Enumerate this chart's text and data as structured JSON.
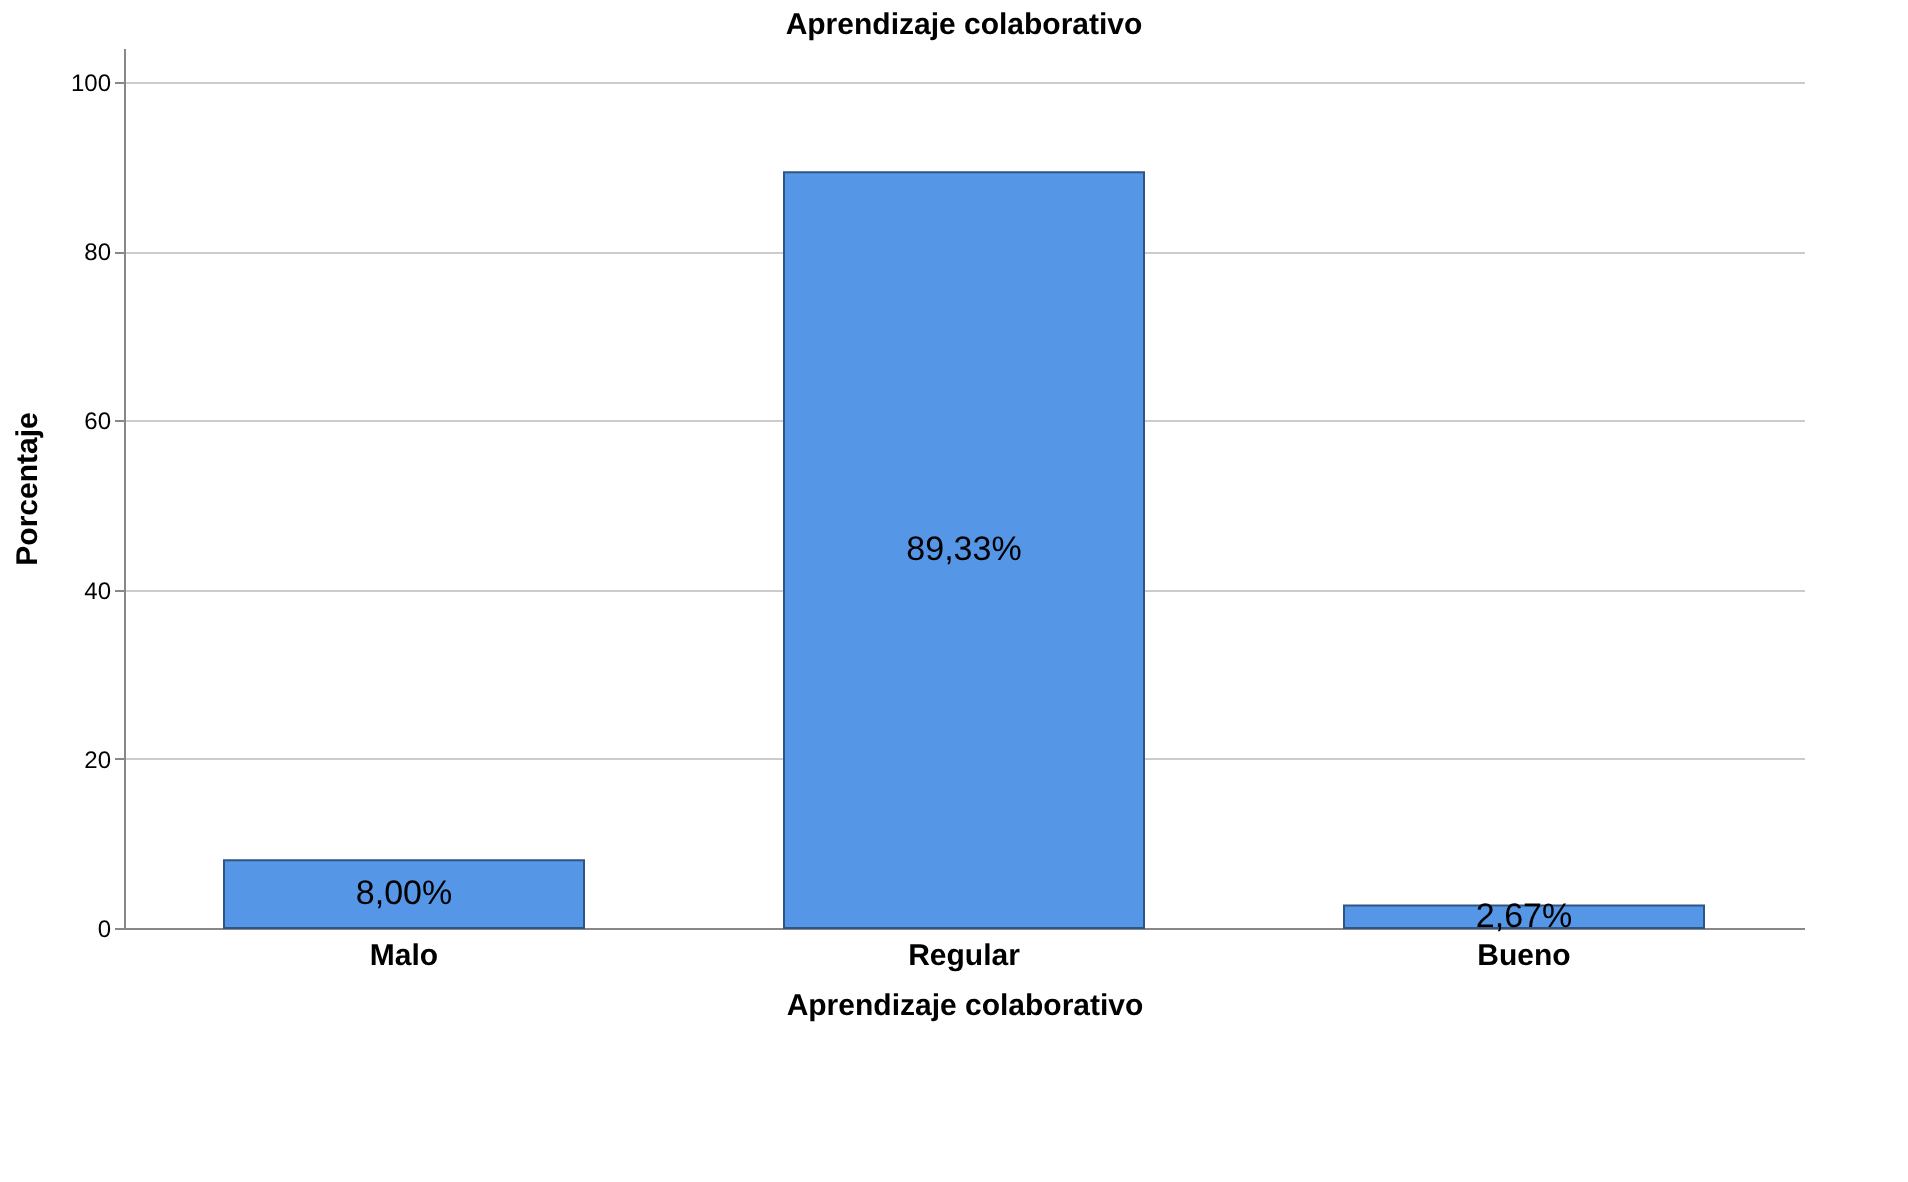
{
  "chart_data": {
    "type": "bar",
    "title": "Aprendizaje colaborativo",
    "xlabel": "Aprendizaje colaborativo",
    "ylabel": "Porcentaje",
    "categories": [
      "Malo",
      "Regular",
      "Bueno"
    ],
    "values": [
      8.0,
      89.33,
      2.67
    ],
    "value_labels": [
      "8,00%",
      "89,33%",
      "2,67%"
    ],
    "color": "#5596e6",
    "ylim": [
      0,
      104
    ],
    "yticks": [
      0,
      20,
      40,
      60,
      80,
      100
    ],
    "grid": "y"
  }
}
